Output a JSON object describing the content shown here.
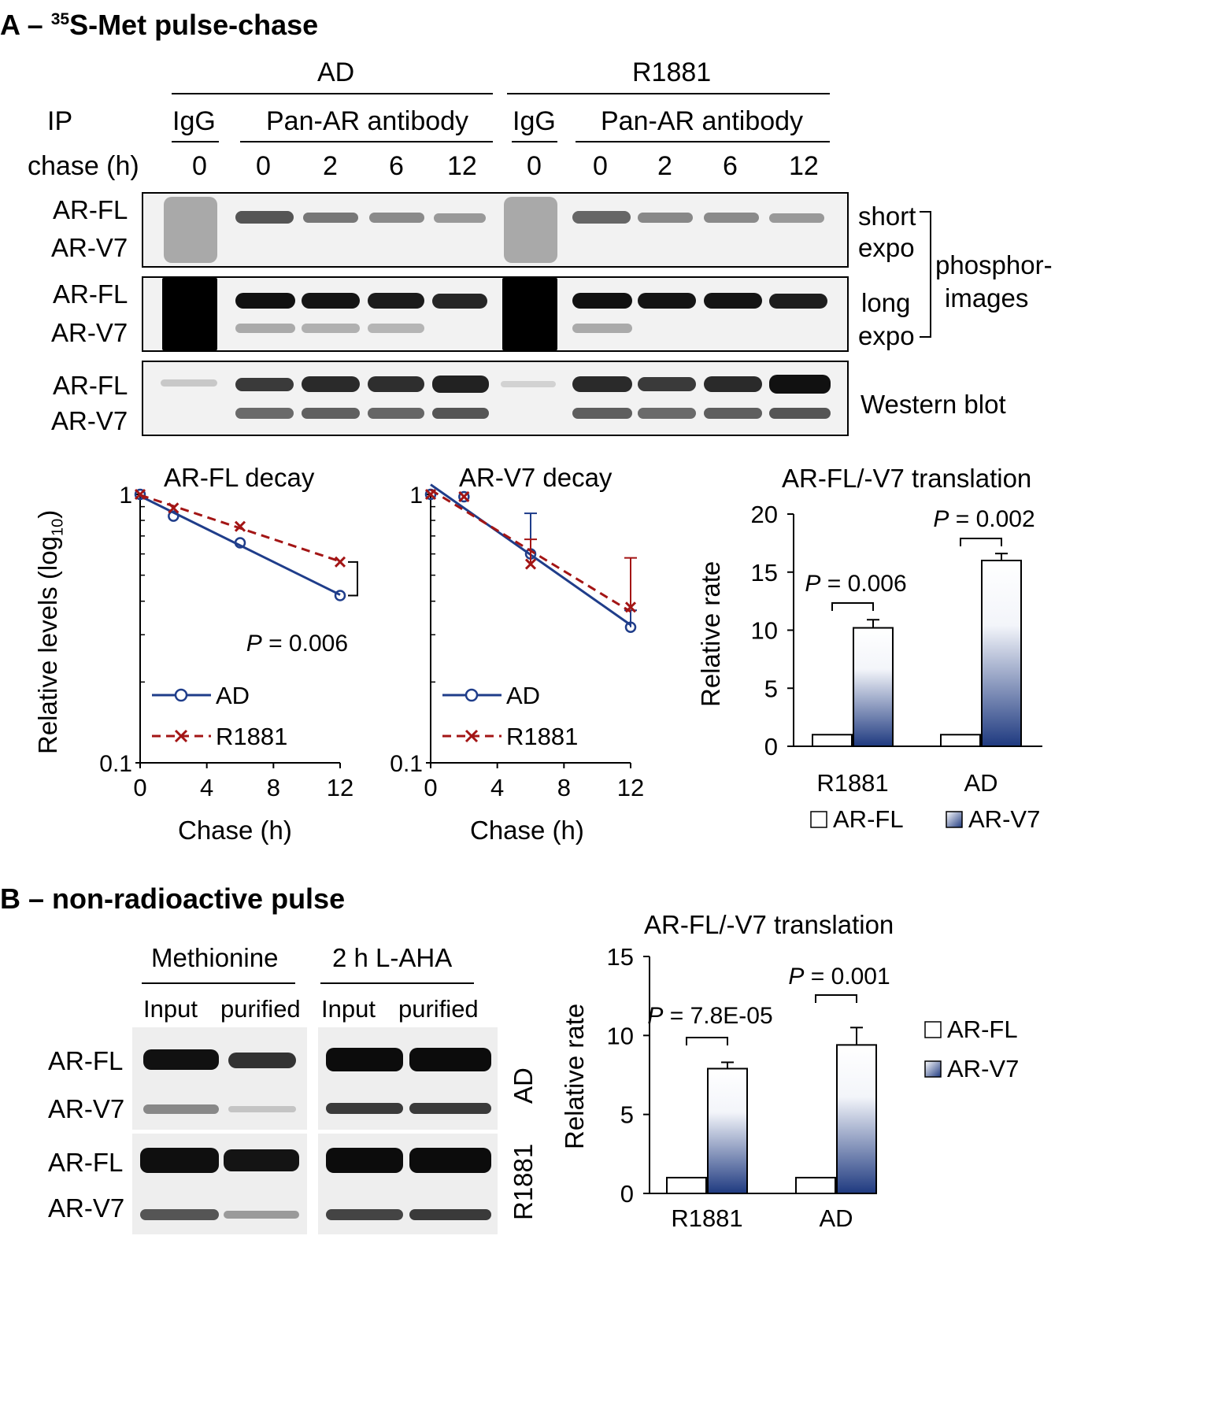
{
  "panelA": {
    "title_letter": "A –",
    "title_sup": "35",
    "title_rest": "S-Met pulse-chase",
    "group_ad": "AD",
    "group_r1881": "R1881",
    "ip_label": "IP",
    "igg": "IgG",
    "pan_ar": "Pan-AR antibody",
    "chase_label": "chase (h)",
    "chase_times": [
      "0",
      "0",
      "2",
      "6",
      "12",
      "0",
      "0",
      "2",
      "6",
      "12"
    ],
    "row_fl": "AR-FL",
    "row_v7": "AR-V7",
    "short": "short",
    "long": "long",
    "expo": "expo",
    "phosphor_1": "phosphor-",
    "phosphor_2": "images",
    "western": "Western blot"
  },
  "panelB": {
    "title": "B – non-radioactive pulse",
    "methionine": "Methionine",
    "laha": "2 h L-AHA",
    "input": "Input",
    "purified": "purified",
    "row_fl": "AR-FL",
    "row_v7": "AR-V7",
    "side_ad": "AD",
    "side_r1881": "R1881"
  },
  "chart_data": [
    {
      "type": "line",
      "title": "AR-FL decay",
      "xlabel": "Chase (h)",
      "ylabel_main": "Relative levels (log",
      "ylabel_sub": "10",
      "ylabel_end": ")",
      "yscale": "log",
      "ylim": [
        0.1,
        1
      ],
      "xlim": [
        0,
        12
      ],
      "xticks": [
        "0",
        "4",
        "8",
        "12"
      ],
      "yticks": [
        "0.1",
        "1"
      ],
      "legend_position": "bottom-left",
      "x": [
        0,
        2,
        6,
        12
      ],
      "series": [
        {
          "name": "AD",
          "values": [
            1.0,
            0.83,
            0.66,
            0.42
          ],
          "color": "#1f3d8a"
        },
        {
          "name": "R1881",
          "values": [
            1.0,
            0.89,
            0.76,
            0.56
          ],
          "color": "#a31515"
        }
      ],
      "annotation": "P = 0.006",
      "annotation_italic": "P",
      "annotation_rest": " = 0.006"
    },
    {
      "type": "line",
      "title": "AR-V7 decay",
      "xlabel": "Chase (h)",
      "yscale": "log",
      "ylim": [
        0.1,
        1
      ],
      "xlim": [
        0,
        12
      ],
      "xticks": [
        "0",
        "4",
        "8",
        "12"
      ],
      "yticks": [
        "0.1",
        "1"
      ],
      "legend_position": "bottom-left",
      "x": [
        0,
        2,
        6,
        12
      ],
      "series": [
        {
          "name": "AD",
          "values": [
            1.0,
            0.98,
            0.6,
            0.32
          ],
          "errors_up": [
            0,
            0,
            0.25,
            0.05
          ],
          "color": "#1f3d8a"
        },
        {
          "name": "R1881",
          "values": [
            1.0,
            0.98,
            0.55,
            0.38
          ],
          "errors_up": [
            0,
            0,
            0.13,
            0.2
          ],
          "color": "#a31515"
        }
      ]
    },
    {
      "type": "bar",
      "title": "AR-FL/-V7 translation",
      "ylabel": "Relative rate",
      "categories": [
        "R1881",
        "AD"
      ],
      "ylim": [
        0,
        20
      ],
      "yticks": [
        "0",
        "5",
        "10",
        "15",
        "20"
      ],
      "legend_position": "bottom",
      "series": [
        {
          "name": "AR-FL",
          "values": [
            1,
            1
          ],
          "errors": [
            0,
            0
          ]
        },
        {
          "name": "AR-V7",
          "values": [
            10.2,
            16.0
          ],
          "errors": [
            0.7,
            0.6
          ]
        }
      ],
      "annotations": [
        {
          "italic": "P",
          "rest": " = 0.006"
        },
        {
          "italic": "P",
          "rest": " = 0.002"
        }
      ]
    },
    {
      "type": "bar",
      "title": "AR-FL/-V7 translation",
      "ylabel": "Relative rate",
      "categories": [
        "R1881",
        "AD"
      ],
      "ylim": [
        0,
        15
      ],
      "yticks": [
        "0",
        "5",
        "10",
        "15"
      ],
      "legend_position": "right",
      "series": [
        {
          "name": "AR-FL",
          "values": [
            1,
            1
          ],
          "errors": [
            0,
            0
          ]
        },
        {
          "name": "AR-V7",
          "values": [
            7.9,
            9.4
          ],
          "errors": [
            0.4,
            1.1
          ]
        }
      ],
      "annotations": [
        {
          "italic": "P",
          "rest": " = 7.8E-05"
        },
        {
          "italic": "P",
          "rest": " = 0.001"
        }
      ]
    }
  ]
}
